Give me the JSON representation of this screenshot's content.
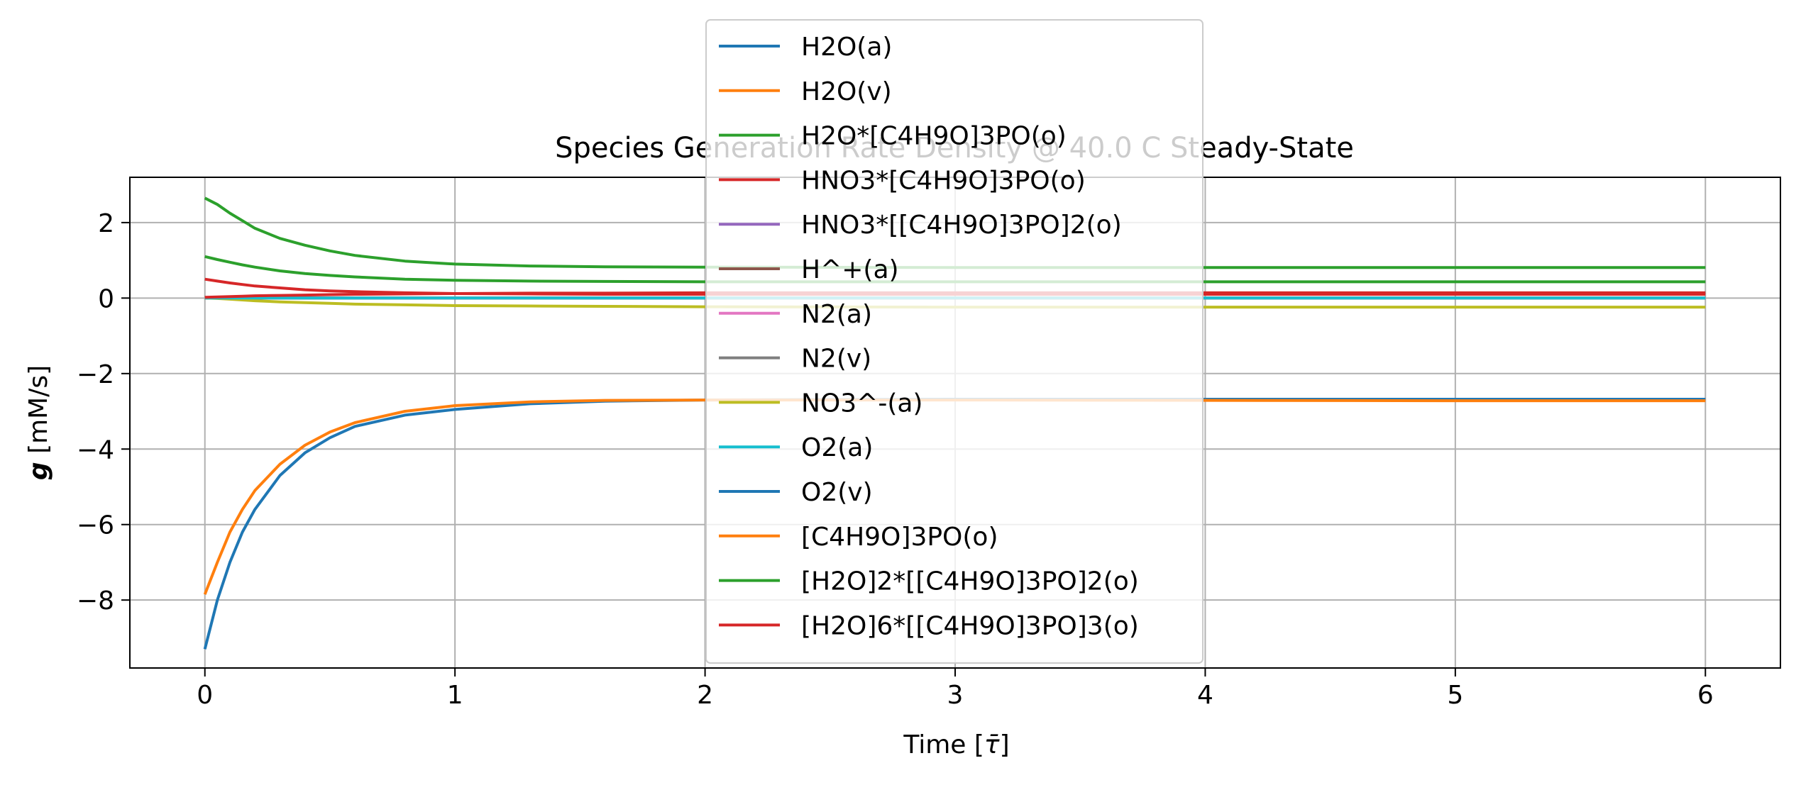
{
  "chart_data": {
    "type": "line",
    "title": "Species Generation Rate Density @ 40.0 C Steady-State",
    "xlabel_text": "Time [",
    "xlabel_symbol": "τ̄",
    "xlabel_close": "]",
    "ylabel_symbol": "g",
    "ylabel_unit": " [mM/s]",
    "xlim": [
      -0.3,
      6.3
    ],
    "ylim": [
      -9.8,
      3.2
    ],
    "xticks": [
      0,
      1,
      2,
      3,
      4,
      5,
      6
    ],
    "xtick_labels": [
      "0",
      "1",
      "2",
      "3",
      "4",
      "5",
      "6"
    ],
    "yticks": [
      -8,
      -6,
      -4,
      -2,
      0,
      2
    ],
    "ytick_labels": [
      "−8",
      "−6",
      "−4",
      "−2",
      "0",
      "2"
    ],
    "grid": true,
    "legend_position": "top-center",
    "x": [
      0,
      0.05,
      0.1,
      0.15,
      0.2,
      0.3,
      0.4,
      0.5,
      0.6,
      0.8,
      1.0,
      1.3,
      1.6,
      2.0,
      3.0,
      4.0,
      5.0,
      6.0
    ],
    "series": [
      {
        "name": "H2O(a)",
        "color": "#1f77b4",
        "values": [
          0,
          0,
          0,
          0,
          0,
          0,
          0,
          0,
          0,
          0,
          0,
          0,
          0,
          0,
          0,
          0,
          0,
          0
        ]
      },
      {
        "name": "H2O(v)",
        "color": "#ff7f0e",
        "values": [
          0,
          0,
          0,
          0,
          0,
          0,
          0,
          0,
          0,
          0,
          0,
          0,
          0,
          0,
          0,
          0,
          0,
          0
        ]
      },
      {
        "name": "H2O*[C4H9O]3PO(o)",
        "color": "#2ca02c",
        "values": [
          2.65,
          2.48,
          2.25,
          2.05,
          1.85,
          1.58,
          1.4,
          1.25,
          1.13,
          0.98,
          0.9,
          0.85,
          0.83,
          0.82,
          0.81,
          0.81,
          0.81,
          0.81
        ]
      },
      {
        "name": "HNO3*[C4H9O]3PO(o)",
        "color": "#d62728",
        "values": [
          0.5,
          0.45,
          0.4,
          0.36,
          0.32,
          0.27,
          0.22,
          0.19,
          0.17,
          0.14,
          0.12,
          0.11,
          0.1,
          0.1,
          0.1,
          0.1,
          0.1,
          0.1
        ]
      },
      {
        "name": "HNO3*[[C4H9O]3PO]2(o)",
        "color": "#9467bd",
        "values": [
          0,
          0,
          0,
          0,
          0,
          0,
          0,
          0,
          0,
          0,
          0,
          0,
          0,
          0,
          0,
          0,
          0,
          0
        ]
      },
      {
        "name": "H^+(a)",
        "color": "#8c564b",
        "values": [
          0,
          0,
          0,
          0,
          0,
          0,
          0,
          0,
          0,
          0,
          0,
          0,
          0,
          0,
          0,
          0,
          0,
          0
        ]
      },
      {
        "name": "N2(a)",
        "color": "#e377c2",
        "values": [
          0,
          0,
          0,
          0,
          0,
          0,
          0,
          0,
          0,
          0,
          0,
          0,
          0,
          0,
          0,
          0,
          0,
          0
        ]
      },
      {
        "name": "N2(v)",
        "color": "#7f7f7f",
        "values": [
          0,
          0,
          0,
          0,
          0,
          0,
          0,
          0,
          0,
          0,
          0,
          0,
          0,
          0,
          0,
          0,
          0,
          0
        ]
      },
      {
        "name": "NO3^-(a)",
        "color": "#bcbd22",
        "values": [
          0,
          -0.01,
          -0.03,
          -0.05,
          -0.07,
          -0.1,
          -0.12,
          -0.14,
          -0.16,
          -0.18,
          -0.2,
          -0.21,
          -0.22,
          -0.23,
          -0.24,
          -0.24,
          -0.24,
          -0.24
        ]
      },
      {
        "name": "O2(a)",
        "color": "#17becf",
        "values": [
          0,
          0,
          0,
          0,
          0,
          0,
          0,
          0,
          0,
          0,
          0,
          0,
          0,
          0,
          0,
          0,
          0,
          0
        ]
      },
      {
        "name": "O2(v)",
        "color": "#1f77b4",
        "values": [
          -9.3,
          -8.0,
          -7.0,
          -6.2,
          -5.6,
          -4.7,
          -4.1,
          -3.7,
          -3.4,
          -3.1,
          -2.95,
          -2.8,
          -2.73,
          -2.7,
          -2.68,
          -2.68,
          -2.68,
          -2.68
        ]
      },
      {
        "name": "[C4H9O]3PO(o)",
        "color": "#ff7f0e",
        "values": [
          -7.85,
          -7.0,
          -6.2,
          -5.6,
          -5.1,
          -4.4,
          -3.9,
          -3.55,
          -3.3,
          -3.0,
          -2.85,
          -2.75,
          -2.71,
          -2.7,
          -2.7,
          -2.71,
          -2.72,
          -2.72
        ]
      },
      {
        "name": "[H2O]2*[[C4H9O]3PO]2(o)",
        "color": "#2ca02c",
        "values": [
          1.1,
          1.02,
          0.95,
          0.88,
          0.82,
          0.72,
          0.65,
          0.6,
          0.56,
          0.5,
          0.47,
          0.45,
          0.44,
          0.43,
          0.43,
          0.43,
          0.43,
          0.43
        ]
      },
      {
        "name": "[H2O]6*[[C4H9O]3PO]3(o)",
        "color": "#d62728",
        "values": [
          0.02,
          0.03,
          0.04,
          0.05,
          0.06,
          0.07,
          0.08,
          0.09,
          0.1,
          0.11,
          0.12,
          0.13,
          0.13,
          0.14,
          0.14,
          0.14,
          0.14,
          0.14
        ]
      }
    ]
  }
}
